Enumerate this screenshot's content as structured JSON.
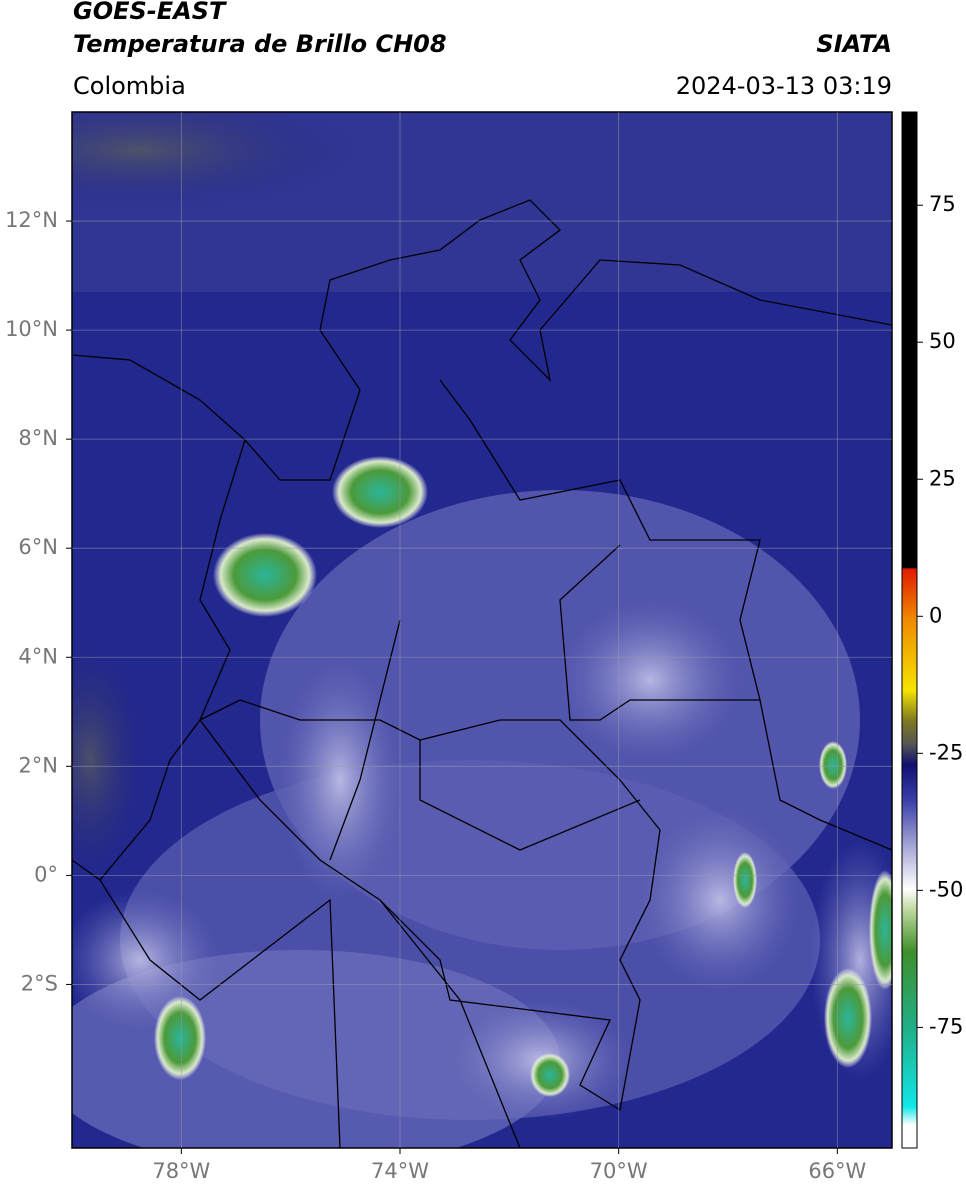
{
  "header": {
    "title": "GOES-EAST",
    "subtitle": "Temperatura de Brillo CH08",
    "region": "Colombia",
    "source": "SIATA",
    "datetime": "2024-03-13 03:19"
  },
  "map": {
    "xlim": [
      -80,
      -65
    ],
    "ylim": [
      -5,
      14
    ],
    "xticks": [
      {
        "value": -78,
        "label": "78°W"
      },
      {
        "value": -74,
        "label": "74°W"
      },
      {
        "value": -70,
        "label": "70°W"
      },
      {
        "value": -66,
        "label": "66°W"
      }
    ],
    "yticks": [
      {
        "value": 12,
        "label": "12°N"
      },
      {
        "value": 10,
        "label": "10°N"
      },
      {
        "value": 8,
        "label": "8°N"
      },
      {
        "value": 6,
        "label": "6°N"
      },
      {
        "value": 4,
        "label": "4°N"
      },
      {
        "value": 2,
        "label": "2°N"
      },
      {
        "value": 0,
        "label": "0°"
      },
      {
        "value": -2,
        "label": "2°S"
      }
    ],
    "grid": true,
    "colorbar": {
      "lim": [
        -97,
        92
      ],
      "ticks": [
        75,
        50,
        25,
        0,
        -25,
        -50,
        -75
      ]
    }
  }
}
